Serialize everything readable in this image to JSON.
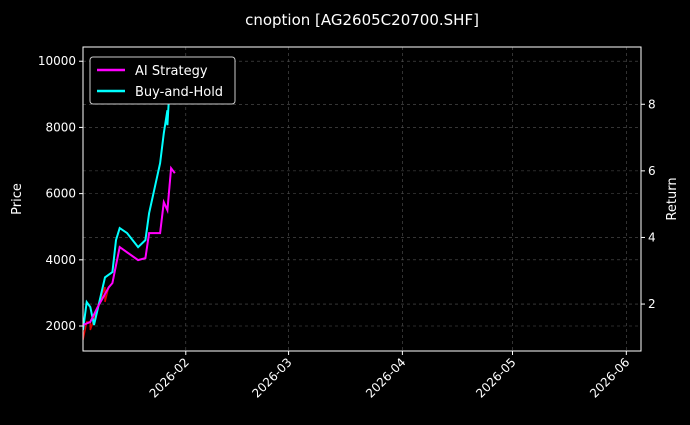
{
  "chart_data": {
    "type": "line",
    "title": "cnoption [AG2605C20700.SHF]",
    "ylabel": "Price",
    "y2label": "Return",
    "xlim": [
      "2026-01-04",
      "2026-06-05"
    ],
    "ylim": [
      1245,
      10430
    ],
    "y2lim": [
      0.59,
      9.72
    ],
    "xticks": [
      "2026-02",
      "2026-03",
      "2026-04",
      "2026-05",
      "2026-06"
    ],
    "yticks": [
      2000,
      4000,
      6000,
      8000,
      10000
    ],
    "y2ticks": [
      2,
      4,
      6,
      8
    ],
    "grid": true,
    "legend": "top-left",
    "series": [
      {
        "name": "AI Strategy",
        "axis": "right",
        "color": "#ff00ff",
        "x": [
          "2026-01-04",
          "2026-01-06",
          "2026-01-08",
          "2026-01-11",
          "2026-01-12",
          "2026-01-14",
          "2026-01-19",
          "2026-01-21",
          "2026-01-22",
          "2026-01-25",
          "2026-01-26",
          "2026-01-27",
          "2026-01-28",
          "2026-01-29"
        ],
        "y": [
          1.37,
          1.46,
          1.91,
          2.5,
          2.63,
          3.71,
          3.32,
          3.38,
          4.13,
          4.13,
          5.06,
          4.82,
          6.08,
          5.93
        ]
      },
      {
        "name": "Buy-and-Hold",
        "axis": "right",
        "color": "#00ffff",
        "x": [
          "2026-01-04",
          "2026-01-05",
          "2026-01-06",
          "2026-01-07",
          "2026-01-10",
          "2026-01-12",
          "2026-01-13",
          "2026-01-14",
          "2026-01-16",
          "2026-01-19",
          "2026-01-21",
          "2026-01-22",
          "2026-01-25",
          "2026-01-26",
          "2026-01-27",
          "2026-01-27",
          "2026-01-28"
        ],
        "y": [
          1.22,
          2.06,
          1.91,
          1.37,
          2.8,
          2.96,
          3.92,
          4.28,
          4.13,
          3.71,
          3.92,
          4.73,
          6.23,
          7.13,
          7.82,
          7.37,
          9.3
        ]
      },
      {
        "axis": "left",
        "color": "#e00000",
        "x": [
          "2026-01-04",
          "2026-01-04",
          "2026-01-05",
          "2026-01-06",
          "2026-01-06",
          "2026-01-07",
          "2026-01-08",
          "2026-01-10",
          "2026-01-10",
          "2026-01-11",
          "2026-01-12",
          "2026-01-14",
          "2026-01-19",
          "2026-01-21",
          "2026-01-22",
          "2026-01-25",
          "2026-01-26",
          "2026-01-27",
          "2026-01-28",
          "2026-01-29"
        ],
        "y": [
          2030,
          1580,
          2120,
          2120,
          1880,
          2200,
          2570,
          3180,
          2730,
          3180,
          3300,
          4390,
          3990,
          4050,
          4810,
          4810,
          5750,
          5500,
          6770,
          6620
        ]
      }
    ]
  }
}
